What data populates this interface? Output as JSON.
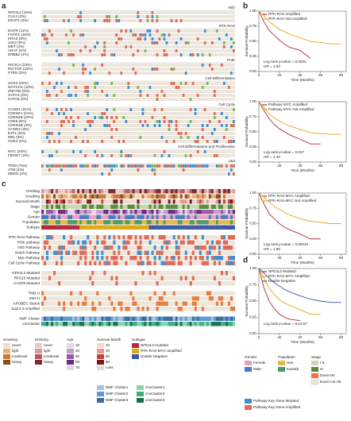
{
  "panel_labels": [
    "a",
    "b",
    "c",
    "d"
  ],
  "oncoprint": {
    "groups": [
      {
        "title": "Nrf2",
        "genes": [
          "NFE2L2 (16%)",
          "CUL3 (4%)",
          "KEAP1 (3%)"
        ]
      },
      {
        "title": "RTK-RAS",
        "genes": [
          "EGFR (11%)",
          "FGFR1 (16%)",
          "KRAS (6%)",
          "JAK2 (9%)",
          "MET (4%)",
          "ARAF (4%)",
          "ERBB2 (4%)"
        ]
      },
      {
        "title": "PI3K",
        "genes": [
          "PIK3CA (23%)",
          "RICTOR (10%)",
          "PTEN (2%)"
        ]
      },
      {
        "title": "Cell Differentiation",
        "genes": [
          "SOX2 (22%)",
          "NOTCH1 (10%)",
          "ZNF750 (8%)",
          "GATA4 (3%)",
          "GATA6 (3%)"
        ]
      },
      {
        "title": "Cell Cycle",
        "genes": [
          "CCND1 (31%)",
          "CDKN2A (21%)",
          "CDKN2B (20%)",
          "CDK6 (8%)",
          "CDKN1B (4%)",
          "CCND2 (3%)",
          "E2F1 (6%)",
          "RB1 (6%)",
          "CDK4 (2%)"
        ]
      },
      {
        "title": "Cell Differentiation and Proliferation",
        "genes": [
          "MYC (20%)",
          "FBXW7 (2%)"
        ]
      },
      {
        "title": "p53",
        "genes": [
          "TP53 (75%)",
          "ATM (4%)",
          "MDM2 (4%)"
        ]
      }
    ]
  },
  "heatmap": {
    "sections": [
      [
        "Drinking",
        "Smoking",
        "Survival Month",
        "Stage",
        "Age",
        "Gender",
        "Population",
        "Subtype"
      ],
      [
        "RTK-RAS Pathway",
        "PI3K pathway",
        "Nrf2 Pathway",
        "Notch Pathway",
        "Myc Pathway",
        "Cell Cycle Pathway"
      ],
      [
        "NFE2L2 Mutated",
        "RPS15 Mutated",
        "CASP8 Mutated"
      ],
      [
        "TMB-H",
        "MSI-H",
        "APOBEC Status",
        "11q13.3 Amplified"
      ],
      [
        "NMF Cluster",
        "cnvCluster"
      ]
    ]
  },
  "legend": {
    "left": [
      {
        "title": "Smoking",
        "items": [
          "never",
          "light",
          "moderate",
          "heavy"
        ]
      },
      {
        "title": "Drinking",
        "items": [
          "never",
          "light",
          "moderate",
          "heavy"
        ]
      },
      {
        "title": "Age",
        "items": [
          "30",
          "40",
          "50",
          "60",
          "70"
        ]
      },
      {
        "title": "Survival Month",
        "items": [
          "20",
          "40",
          "60",
          "80",
          "Loss"
        ]
      },
      {
        "title": "Subtype",
        "items": [
          "NFE2L2-mutated",
          "RTK-RAS-MYC-amplified",
          "Double Negative"
        ]
      }
    ],
    "clusters": [
      "NMF Cluster1",
      "NMF Cluster2",
      "NMF Cluster3",
      "cnvCluster1",
      "cnvCluster2",
      "cnvCluster3"
    ],
    "right": [
      {
        "title": "Gender",
        "items": [
          "Female",
          "Male"
        ]
      },
      {
        "title": "Population",
        "items": [
          "Han",
          "Kazakh"
        ]
      },
      {
        "title": "Stage",
        "items": [
          "I-II",
          "III"
        ]
      }
    ],
    "events": [
      "Event Hit",
      "Event not Hit"
    ],
    "pathway": [
      "Pathway Key Gene Mutated",
      "Pathway Key Gene Amplified"
    ]
  },
  "chart_data": [
    {
      "type": "line",
      "xlabel": "Time (Months)",
      "ylabel": "Survival Probability",
      "x": [
        0,
        5,
        10,
        15,
        20,
        25,
        30,
        40,
        50,
        60,
        70,
        80
      ],
      "xlim": [
        0,
        85
      ],
      "xticks": [
        0,
        20,
        40,
        60,
        80
      ],
      "ylim": [
        0,
        1
      ],
      "yticks": [
        {
          "value": 0,
          "label": "0.00"
        },
        {
          "value": 0.25,
          "label": "0.25"
        },
        {
          "value": 0.5,
          "label": "0.50"
        },
        {
          "value": 0.75,
          "label": "0.75"
        },
        {
          "value": 1,
          "label": "1.00"
        }
      ],
      "series": [
        {
          "name": "RTK-RAS Amplified",
          "color": "#b5283a",
          "values": [
            1,
            0.82,
            0.68,
            0.6,
            0.52,
            0.45,
            0.4,
            0.35,
            0.22,
            null,
            null,
            null
          ]
        },
        {
          "name": "RTK-RAS Not Amplified",
          "color": "#e0a818",
          "values": [
            1,
            0.92,
            0.83,
            0.76,
            0.7,
            0.66,
            0.62,
            0.56,
            0.5,
            0.48,
            0.46,
            0.45
          ]
        }
      ],
      "annotations": [
        "Log rank p-value = 0.0032",
        "HR = 1.54"
      ]
    },
    {
      "type": "line",
      "xlabel": "Time (Months)",
      "ylabel": "Survival Probability",
      "x": [
        0,
        5,
        10,
        15,
        20,
        25,
        30,
        40,
        50,
        60,
        70,
        80
      ],
      "xlim": [
        0,
        85
      ],
      "xticks": [
        0,
        20,
        40,
        60,
        80
      ],
      "ylim": [
        0,
        1
      ],
      "yticks": [
        {
          "value": 0,
          "label": "0.00"
        },
        {
          "value": 0.25,
          "label": "0.25"
        },
        {
          "value": 0.5,
          "label": "0.50"
        },
        {
          "value": 0.75,
          "label": "0.75"
        },
        {
          "value": 1,
          "label": "1.00"
        }
      ],
      "series": [
        {
          "name": "Pathway MYC Amplified",
          "color": "#b5283a",
          "values": [
            1,
            0.85,
            0.72,
            0.62,
            0.55,
            0.5,
            0.45,
            0.38,
            0.3,
            0.3,
            null,
            null
          ]
        },
        {
          "name": "Pathway MYC Not Amplified",
          "color": "#e0a818",
          "values": [
            1,
            0.9,
            0.8,
            0.73,
            0.68,
            0.63,
            0.6,
            0.54,
            0.49,
            0.47,
            0.46,
            0.46
          ]
        }
      ],
      "annotations": [
        "Log rank p-value = 0.017",
        "HR = 1.40"
      ]
    },
    {
      "type": "line",
      "xlabel": "Time (Months)",
      "ylabel": "Survival Probability",
      "x": [
        0,
        5,
        10,
        15,
        20,
        25,
        30,
        40,
        50,
        60,
        70,
        80
      ],
      "xlim": [
        0,
        85
      ],
      "xticks": [
        0,
        20,
        40,
        60,
        80
      ],
      "ylim": [
        0,
        1
      ],
      "yticks": [
        {
          "value": 0,
          "label": "0.00"
        },
        {
          "value": 0.25,
          "label": "0.25"
        },
        {
          "value": 0.5,
          "label": "0.50"
        },
        {
          "value": 0.75,
          "label": "0.75"
        },
        {
          "value": 1,
          "label": "1.00"
        }
      ],
      "series": [
        {
          "name": "RTK-RAS-MYC Amplified",
          "color": "#b5283a",
          "values": [
            1,
            0.82,
            0.66,
            0.58,
            0.5,
            0.44,
            0.4,
            0.33,
            0.25,
            0.25,
            null,
            null
          ]
        },
        {
          "name": "RTK-RAS-MYC Not Amplified",
          "color": "#e0a818",
          "values": [
            1,
            0.93,
            0.85,
            0.78,
            0.73,
            0.68,
            0.64,
            0.58,
            0.54,
            0.52,
            0.5,
            0.5
          ]
        }
      ],
      "annotations": [
        "Log rank p-value = 0.00016",
        "HR = 1.66"
      ]
    },
    {
      "type": "line",
      "xlabel": "Time (Months)",
      "ylabel": "Survival Probability",
      "x": [
        0,
        5,
        10,
        15,
        20,
        25,
        30,
        40,
        50,
        60,
        70,
        80
      ],
      "xlim": [
        0,
        85
      ],
      "xticks": [
        0,
        20,
        40,
        60,
        80
      ],
      "ylim": [
        0,
        1
      ],
      "yticks": [
        {
          "value": 0,
          "label": "0.00"
        },
        {
          "value": 0.25,
          "label": "0.25"
        },
        {
          "value": 0.5,
          "label": "0.50"
        },
        {
          "value": 0.75,
          "label": "0.75"
        },
        {
          "value": 1,
          "label": "1.00"
        }
      ],
      "series": [
        {
          "name": "NFE2L2 Mutated",
          "color": "#b5283a",
          "values": [
            1,
            0.7,
            0.5,
            0.38,
            0.3,
            0.25,
            0.22,
            0.2,
            null,
            null,
            null,
            null
          ]
        },
        {
          "name": "RTK-RAS-MYC Amplified",
          "color": "#e0a818",
          "values": [
            1,
            0.85,
            0.7,
            0.6,
            0.52,
            0.47,
            0.43,
            0.37,
            0.3,
            0.3,
            null,
            null
          ]
        },
        {
          "name": "Double Negative",
          "color": "#3b57a6",
          "values": [
            1,
            0.93,
            0.85,
            0.78,
            0.73,
            0.68,
            0.64,
            0.58,
            0.53,
            0.5,
            0.48,
            0.48
          ]
        }
      ],
      "annotations": [
        "Log rank p-value = 9.1e-07"
      ]
    }
  ]
}
